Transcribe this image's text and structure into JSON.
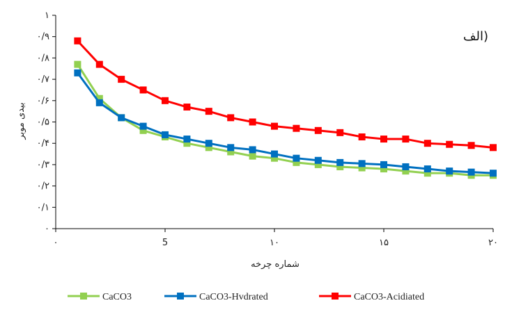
{
  "chart_data": {
    "type": "line",
    "panel_label": "الف)",
    "xlabel": "شماره چرخه",
    "ylabel": "بیدی موبر",
    "xlim": [
      0,
      20
    ],
    "ylim": [
      0,
      1
    ],
    "x_ticks": [
      0,
      5,
      10,
      15,
      20
    ],
    "x_tick_labels": [
      "۰",
      "5",
      "۱۰",
      "۱۵",
      "۲۰"
    ],
    "y_ticks": [
      0,
      0.1,
      0.2,
      0.3,
      0.4,
      0.5,
      0.6,
      0.7,
      0.8,
      0.9,
      1
    ],
    "y_tick_labels": [
      "۰",
      "۰/۱",
      "۰/۲",
      "۰/۳",
      "۰/۴",
      "۰/۵",
      "۰/۶",
      "۰/۷",
      "۰/۸",
      "۰/۹",
      "۱"
    ],
    "grid": false,
    "legend_position": "bottom",
    "x": [
      1,
      2,
      3,
      4,
      5,
      6,
      7,
      8,
      9,
      10,
      11,
      12,
      13,
      14,
      15,
      16,
      17,
      18,
      19,
      20
    ],
    "series": [
      {
        "name": "CaCO3",
        "color": "#92d050",
        "marker": "square",
        "values": [
          0.77,
          0.61,
          0.52,
          0.46,
          0.43,
          0.4,
          0.38,
          0.36,
          0.34,
          0.33,
          0.31,
          0.3,
          0.29,
          0.285,
          0.28,
          0.27,
          0.26,
          0.26,
          0.25,
          0.25
        ]
      },
      {
        "name": "CaCO3-Hvdrated",
        "color": "#0070c0",
        "marker": "square",
        "values": [
          0.73,
          0.59,
          0.52,
          0.48,
          0.44,
          0.42,
          0.4,
          0.38,
          0.37,
          0.35,
          0.33,
          0.32,
          0.31,
          0.305,
          0.3,
          0.29,
          0.28,
          0.27,
          0.265,
          0.26
        ]
      },
      {
        "name": "CaCO3-Acidiated",
        "color": "#ff0000",
        "marker": "square",
        "values": [
          0.88,
          0.77,
          0.7,
          0.65,
          0.6,
          0.57,
          0.55,
          0.52,
          0.5,
          0.48,
          0.47,
          0.46,
          0.45,
          0.43,
          0.42,
          0.42,
          0.4,
          0.395,
          0.39,
          0.38
        ]
      }
    ]
  }
}
